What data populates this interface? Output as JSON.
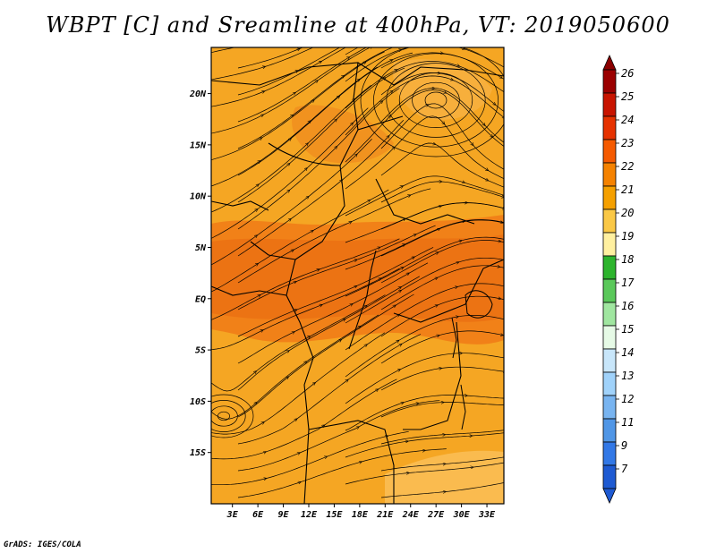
{
  "title": "WBPT [C] and Sreamline at 400hPa, VT: 2019050600",
  "credit": "GrADS: IGES/COLA",
  "map": {
    "field": "WBPT",
    "units": "C",
    "level": "400hPa",
    "valid_time": "2019050600",
    "lat_labels": [
      "20N",
      "15N",
      "10N",
      "5N",
      "EQ",
      "5S",
      "10S",
      "15S"
    ],
    "lat_values": [
      20,
      15,
      10,
      5,
      0,
      -5,
      -10,
      -15
    ],
    "lon_labels": [
      "3E",
      "6E",
      "9E",
      "12E",
      "15E",
      "18E",
      "21E",
      "24E",
      "27E",
      "30E",
      "33E"
    ],
    "lon_values": [
      3,
      6,
      9,
      12,
      15,
      18,
      21,
      24,
      27,
      30,
      33
    ],
    "lon_range": [
      0.5,
      35
    ],
    "lat_range": [
      -20,
      24.5
    ],
    "background_color": "#f5a623"
  },
  "colorbar": {
    "levels": [
      "26",
      "25",
      "24",
      "23",
      "22",
      "21",
      "20",
      "19",
      "18",
      "17",
      "16",
      "15",
      "14",
      "13",
      "12",
      "11",
      "9",
      "7"
    ],
    "colors": [
      "#9b0000",
      "#c81400",
      "#e63200",
      "#f55a00",
      "#f58200",
      "#f5a000",
      "#fac846",
      "#fff0a0",
      "#2db42d",
      "#5ac85a",
      "#a0e6a0",
      "#e6fae6",
      "#c8e6fa",
      "#a0d2fa",
      "#78b4f0",
      "#5096e6",
      "#3278e6",
      "#1e5ad2"
    ],
    "top_color": "#8b0000",
    "bottom_color": "#1e5ad2"
  }
}
